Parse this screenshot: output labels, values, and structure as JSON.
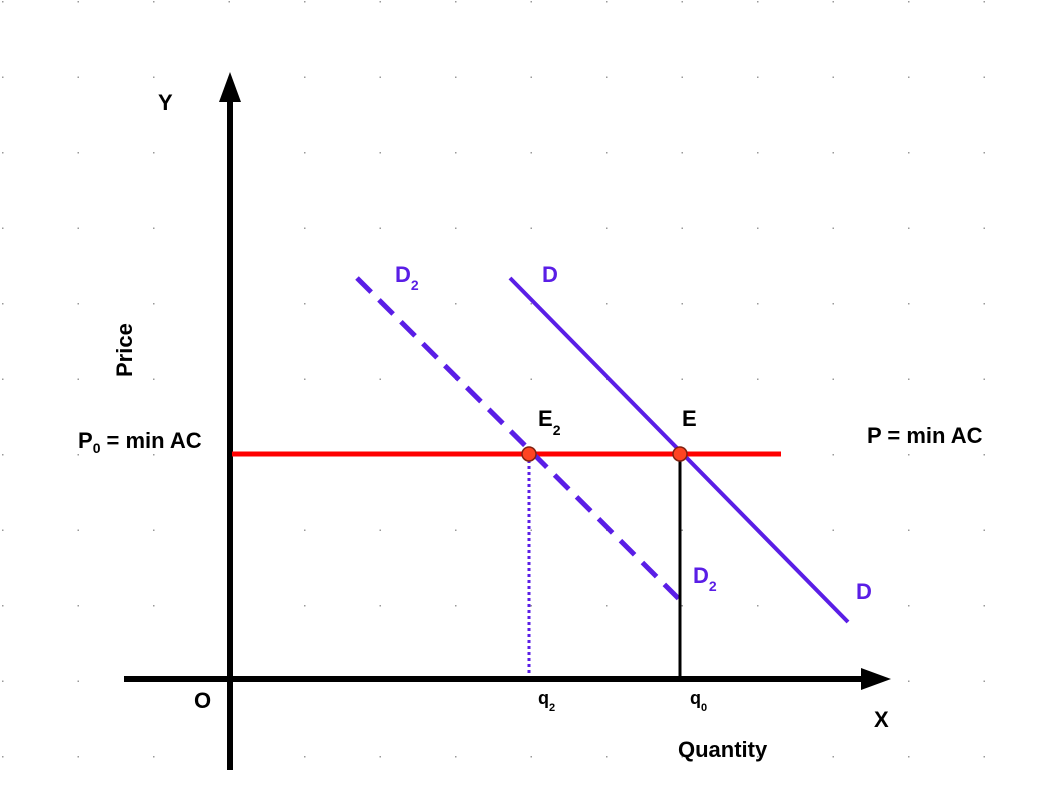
{
  "axes": {
    "y_label": "Y",
    "x_label": "X",
    "origin": "O",
    "y_title": "Price",
    "x_title": "Quantity"
  },
  "demand": {
    "label": "D"
  },
  "demand2": {
    "label": "D",
    "sub": "2"
  },
  "price_line": {
    "left": {
      "main": "P",
      "sub": "0",
      "rest": "= min AC"
    },
    "right": "P = min AC"
  },
  "points": [
    {
      "label": "E"
    },
    {
      "label": "E",
      "sub": "2"
    }
  ],
  "quantities": [
    {
      "label": "q",
      "sub": "2"
    },
    {
      "label": "q",
      "sub": "0"
    }
  ]
}
